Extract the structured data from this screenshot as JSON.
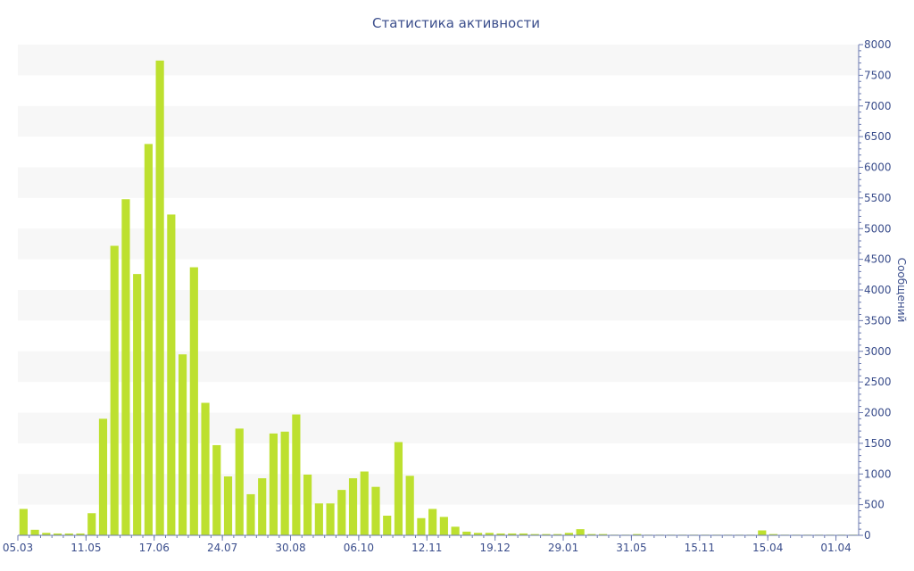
{
  "chart_data": {
    "type": "bar",
    "title": "Статистика активности",
    "ylabel": "Сообщений",
    "xlabel": "",
    "ylim": [
      0,
      8000
    ],
    "y_ticks": [
      0,
      500,
      1000,
      1500,
      2000,
      2500,
      3000,
      3500,
      4000,
      4500,
      5000,
      5500,
      6000,
      6500,
      7000,
      7500,
      8000
    ],
    "y_axis_position": "right",
    "grid": "alternating horizontal bands",
    "x_tick_labels": [
      {
        "index": 0,
        "label": "05.03"
      },
      {
        "index": 6,
        "label": "11.05"
      },
      {
        "index": 12,
        "label": "17.06"
      },
      {
        "index": 18,
        "label": "24.07"
      },
      {
        "index": 24,
        "label": "30.08"
      },
      {
        "index": 30,
        "label": "06.10"
      },
      {
        "index": 36,
        "label": "12.11"
      },
      {
        "index": 42,
        "label": "19.12"
      },
      {
        "index": 48,
        "label": "29.01"
      },
      {
        "index": 54,
        "label": "31.05"
      },
      {
        "index": 60,
        "label": "15.11"
      },
      {
        "index": 66,
        "label": "15.04"
      },
      {
        "index": 72,
        "label": "01.04"
      }
    ],
    "values": [
      430,
      90,
      40,
      30,
      30,
      30,
      360,
      1900,
      4720,
      5480,
      4260,
      6380,
      7740,
      5230,
      2950,
      4370,
      2160,
      1470,
      960,
      1740,
      670,
      930,
      1660,
      1690,
      1970,
      990,
      520,
      520,
      740,
      930,
      1040,
      790,
      320,
      1520,
      970,
      280,
      430,
      300,
      140,
      60,
      40,
      40,
      30,
      30,
      30,
      20,
      20,
      20,
      40,
      100,
      20,
      20,
      10,
      10,
      20,
      10,
      10,
      10,
      10,
      10,
      10,
      10,
      10,
      10,
      10,
      80,
      20,
      10,
      10,
      10,
      10,
      10,
      10,
      10
    ],
    "bar_color": "#bde02f",
    "text_color": "#3b4e8c",
    "band_color": "#f7f7f7",
    "axis_color": "#6b7ab0"
  }
}
